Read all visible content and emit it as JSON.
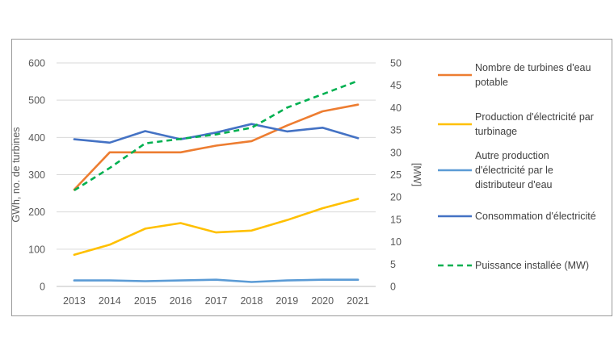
{
  "chart_data": {
    "type": "line",
    "title": "",
    "x": [
      "2013",
      "2014",
      "2015",
      "2016",
      "2017",
      "2018",
      "2019",
      "2020",
      "2021"
    ],
    "ylabel": "GWh, no. de turbines",
    "y2label": "[MW]",
    "ylim": [
      0,
      600
    ],
    "y2lim": [
      0,
      50
    ],
    "yticks": [
      "0",
      "100",
      "200",
      "300",
      "400",
      "500",
      "600"
    ],
    "y2ticks": [
      "0",
      "5",
      "10",
      "15",
      "20",
      "25",
      "30",
      "35",
      "40",
      "45",
      "50"
    ],
    "grid": true,
    "legend_position": "right",
    "series": [
      {
        "name": "Nombre de turbines d'eau potable",
        "legend_lines": [
          "Nombre de turbines d'eau",
          "potable"
        ],
        "axis": "left",
        "color": "#ED7D31",
        "dash": "solid",
        "values": [
          260,
          360,
          360,
          360,
          378,
          390,
          432,
          470,
          488
        ]
      },
      {
        "name": "Production d'électricité par turbinage",
        "legend_lines": [
          "Production d'électricité par",
          "turbinage"
        ],
        "axis": "left",
        "color": "#FFC000",
        "dash": "solid",
        "values": [
          85,
          112,
          155,
          170,
          145,
          150,
          178,
          210,
          235
        ]
      },
      {
        "name": "Autre production d'électricité par le distributeur d'eau",
        "legend_lines": [
          "Autre production",
          "d'électricité par le",
          "distributeur d'eau"
        ],
        "axis": "left",
        "color": "#5B9BD5",
        "dash": "solid",
        "values": [
          16,
          16,
          14,
          16,
          18,
          12,
          16,
          18,
          18
        ]
      },
      {
        "name": "Consommation d'électricité",
        "legend_lines": [
          "Consommation d'électricité"
        ],
        "axis": "left",
        "color": "#4472C4",
        "dash": "solid",
        "values": [
          395,
          386,
          417,
          395,
          413,
          436,
          416,
          426,
          398
        ]
      },
      {
        "name": "Puissance installée (MW)",
        "legend_lines": [
          "Puissance installée (MW)"
        ],
        "axis": "right",
        "color": "#00B050",
        "dash": "dashed",
        "values": [
          21.5,
          26.5,
          32,
          33,
          34,
          35.5,
          40,
          43,
          46
        ]
      }
    ]
  }
}
